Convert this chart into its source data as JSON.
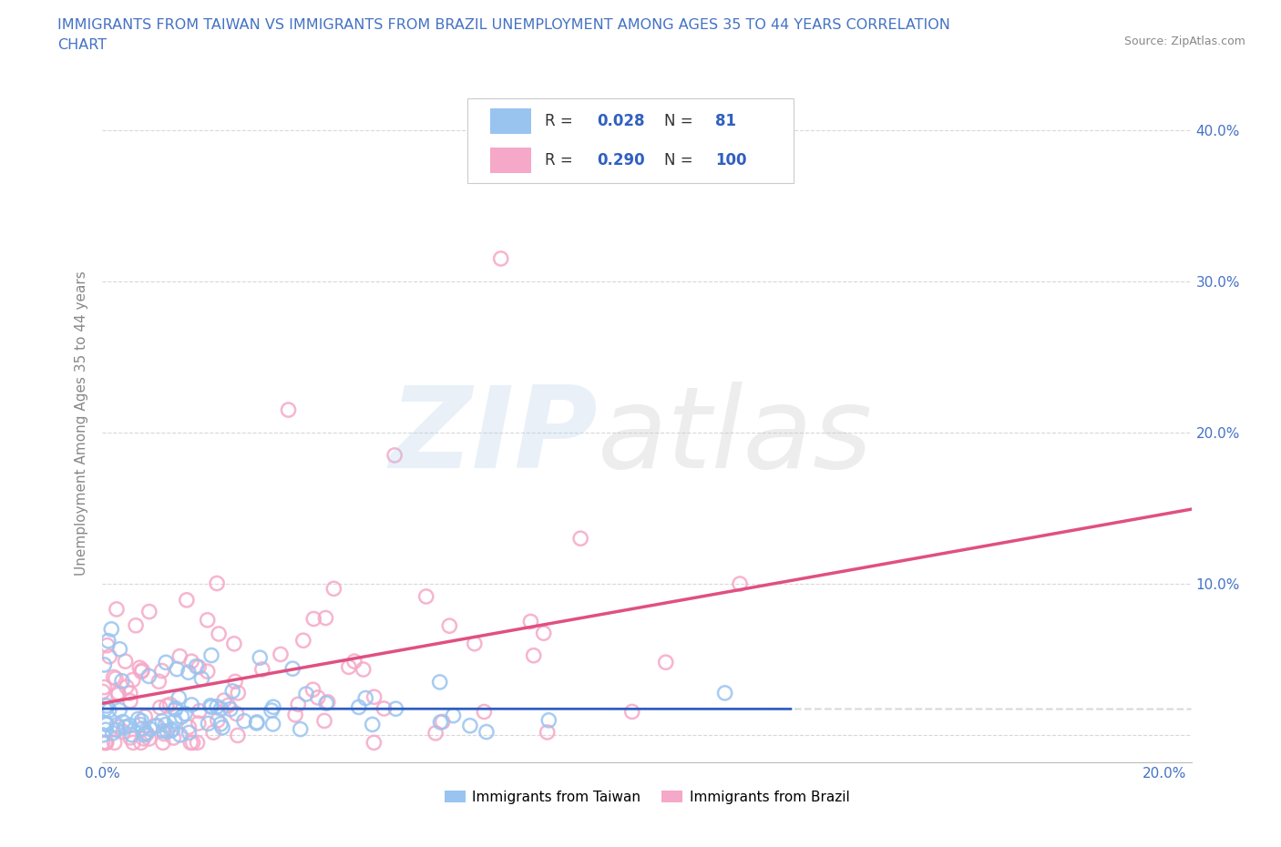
{
  "title_line1": "IMMIGRANTS FROM TAIWAN VS IMMIGRANTS FROM BRAZIL UNEMPLOYMENT AMONG AGES 35 TO 44 YEARS CORRELATION",
  "title_line2": "CHART",
  "source": "Source: ZipAtlas.com",
  "ylabel": "Unemployment Among Ages 35 to 44 years",
  "xlim": [
    0.0,
    0.205
  ],
  "ylim": [
    -0.018,
    0.43
  ],
  "xticks": [
    0.0,
    0.05,
    0.1,
    0.15,
    0.2
  ],
  "yticks": [
    0.0,
    0.1,
    0.2,
    0.3,
    0.4
  ],
  "xticklabels": [
    "0.0%",
    "",
    "",
    "",
    "20.0%"
  ],
  "yticklabels_right": [
    "",
    "10.0%",
    "20.0%",
    "30.0%",
    "40.0%"
  ],
  "taiwan_R": 0.028,
  "taiwan_N": 81,
  "brazil_R": 0.29,
  "brazil_N": 100,
  "taiwan_color": "#99c4f0",
  "brazil_color": "#f5a8c8",
  "taiwan_trend_color": "#3060c0",
  "brazil_trend_color": "#e05080",
  "title_color": "#4472c4",
  "tick_color": "#4472c4",
  "grid_color": "#d8d8d8",
  "axis_label_color": "#888888",
  "background_color": "#ffffff",
  "legend_edge_color": "#cccccc"
}
